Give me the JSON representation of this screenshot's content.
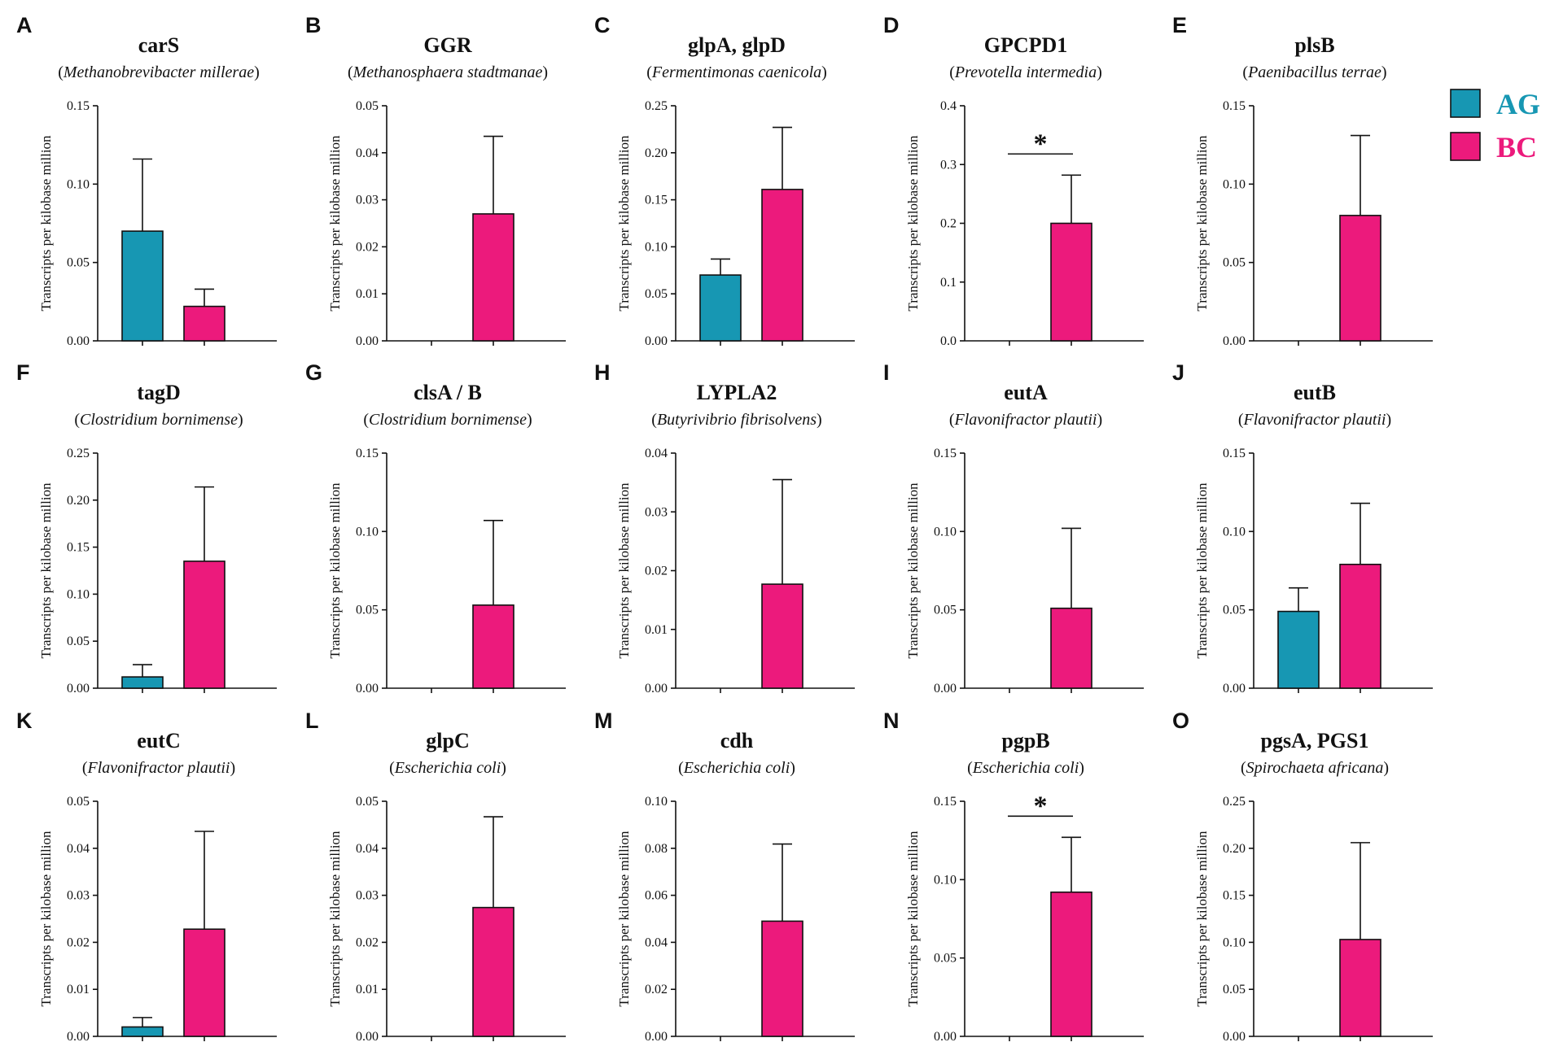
{
  "chart_data": {
    "type": "bar",
    "ylabel": "Transcripts per kilobase million",
    "groups": [
      "AG",
      "BC"
    ],
    "colors": {
      "AG": "#1797B3",
      "BC": "#EC1A7C"
    },
    "legend": {
      "placement": "top-right",
      "entries": [
        {
          "name": "AG",
          "color": "#1797B3"
        },
        {
          "name": "BC",
          "color": "#EC1A7C"
        }
      ]
    },
    "panels": [
      {
        "letter": "A",
        "gene": "carS",
        "species": "Methanobrevibacter millerae",
        "ylim": [
          0,
          0.15
        ],
        "ticks": [
          "0.00",
          "0.05",
          "0.10",
          "0.15"
        ],
        "values": [
          0.07,
          0.022
        ],
        "errors": [
          0.046,
          0.011
        ],
        "significance": null
      },
      {
        "letter": "B",
        "gene": "GGR",
        "species": "Methanosphaera stadtmanae",
        "ylim": [
          0,
          0.05
        ],
        "ticks": [
          "0.00",
          "0.01",
          "0.02",
          "0.03",
          "0.04",
          "0.05"
        ],
        "values": [
          0,
          0.027
        ],
        "errors": [
          0,
          0.0165
        ],
        "significance": null
      },
      {
        "letter": "C",
        "gene": "glpA, glpD",
        "species": "Fermentimonas caenicola",
        "ylim": [
          0,
          0.25
        ],
        "ticks": [
          "0.00",
          "0.05",
          "0.10",
          "0.15",
          "0.20",
          "0.25"
        ],
        "values": [
          0.07,
          0.161
        ],
        "errors": [
          0.017,
          0.066
        ],
        "significance": null
      },
      {
        "letter": "D",
        "gene": "GPCPD1",
        "species": "Prevotella intermedia",
        "ylim": [
          0,
          0.4
        ],
        "ticks": [
          "0.0",
          "0.1",
          "0.2",
          "0.3",
          "0.4"
        ],
        "values": [
          0,
          0.2
        ],
        "errors": [
          0,
          0.082
        ],
        "significance": "*"
      },
      {
        "letter": "E",
        "gene": "plsB",
        "species": "Paenibacillus terrae",
        "ylim": [
          0,
          0.15
        ],
        "ticks": [
          "0.00",
          "0.05",
          "0.10",
          "0.15"
        ],
        "values": [
          0,
          0.08
        ],
        "errors": [
          0,
          0.051
        ],
        "significance": null
      },
      {
        "letter": "F",
        "gene": "tagD",
        "species": "Clostridium bornimense",
        "ylim": [
          0,
          0.25
        ],
        "ticks": [
          "0.00",
          "0.05",
          "0.10",
          "0.15",
          "0.20",
          "0.25"
        ],
        "values": [
          0.012,
          0.135
        ],
        "errors": [
          0.013,
          0.079
        ],
        "significance": null
      },
      {
        "letter": "G",
        "gene": "clsA / B",
        "species": "Clostridium bornimense",
        "ylim": [
          0,
          0.15
        ],
        "ticks": [
          "0.00",
          "0.05",
          "0.10",
          "0.15"
        ],
        "values": [
          0,
          0.053
        ],
        "errors": [
          0,
          0.054
        ],
        "significance": null
      },
      {
        "letter": "H",
        "gene": "LYPLA2",
        "species": "Butyrivibrio fibrisolvens",
        "ylim": [
          0,
          0.04
        ],
        "ticks": [
          "0.00",
          "0.01",
          "0.02",
          "0.03",
          "0.04"
        ],
        "values": [
          0,
          0.0177
        ],
        "errors": [
          0,
          0.0178
        ],
        "significance": null
      },
      {
        "letter": "I",
        "gene": "eutA",
        "species": "Flavonifractor plautii",
        "ylim": [
          0,
          0.15
        ],
        "ticks": [
          "0.00",
          "0.05",
          "0.10",
          "0.15"
        ],
        "values": [
          0,
          0.051
        ],
        "errors": [
          0,
          0.051
        ],
        "significance": null
      },
      {
        "letter": "J",
        "gene": "eutB",
        "species": "Flavonifractor plautii",
        "ylim": [
          0,
          0.15
        ],
        "ticks": [
          "0.00",
          "0.05",
          "0.10",
          "0.15"
        ],
        "values": [
          0.049,
          0.079
        ],
        "errors": [
          0.015,
          0.039
        ],
        "significance": null
      },
      {
        "letter": "K",
        "gene": "eutC",
        "species": "Flavonifractor plautii",
        "ylim": [
          0,
          0.05
        ],
        "ticks": [
          "0.00",
          "0.01",
          "0.02",
          "0.03",
          "0.04",
          "0.05"
        ],
        "values": [
          0.002,
          0.0228
        ],
        "errors": [
          0.002,
          0.0208
        ],
        "significance": null
      },
      {
        "letter": "L",
        "gene": "glpC",
        "species": "Escherichia coli",
        "ylim": [
          0,
          0.05
        ],
        "ticks": [
          "0.00",
          "0.01",
          "0.02",
          "0.03",
          "0.04",
          "0.05"
        ],
        "values": [
          0,
          0.0274
        ],
        "errors": [
          0,
          0.0193
        ],
        "significance": null
      },
      {
        "letter": "M",
        "gene": "cdh",
        "species": "Escherichia coli",
        "ylim": [
          0,
          0.1
        ],
        "ticks": [
          "0.00",
          "0.02",
          "0.04",
          "0.06",
          "0.08",
          "0.10"
        ],
        "values": [
          0,
          0.049
        ],
        "errors": [
          0,
          0.0328
        ],
        "significance": null
      },
      {
        "letter": "N",
        "gene": "pgpB",
        "species": "Escherichia coli",
        "ylim": [
          0,
          0.15
        ],
        "ticks": [
          "0.00",
          "0.05",
          "0.10",
          "0.15"
        ],
        "values": [
          0,
          0.092
        ],
        "errors": [
          0,
          0.035
        ],
        "significance": "*"
      },
      {
        "letter": "O",
        "gene": "pgsA, PGS1",
        "species": "Spirochaeta africana",
        "ylim": [
          0,
          0.25
        ],
        "ticks": [
          "0.00",
          "0.05",
          "0.10",
          "0.15",
          "0.20",
          "0.25"
        ],
        "values": [
          0,
          0.103
        ],
        "errors": [
          0,
          0.103
        ],
        "significance": null
      }
    ]
  }
}
